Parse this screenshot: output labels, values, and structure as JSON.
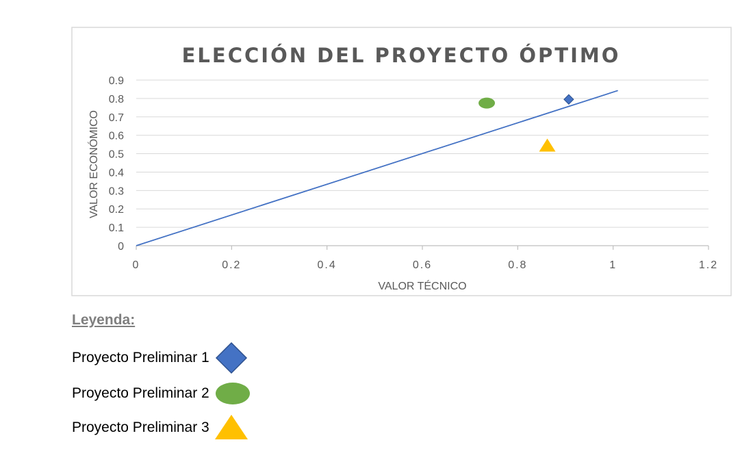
{
  "chart_data": {
    "type": "scatter",
    "title": "ELECCIÓN DEL PROYECTO ÓPTIMO",
    "xlabel": "VALOR TÉCNICO",
    "ylabel": "VALOR ECONÓMICO",
    "xlim": [
      0,
      1.2
    ],
    "ylim": [
      0,
      0.9
    ],
    "x_ticks": [
      0,
      0.2,
      0.4,
      0.6,
      0.8,
      1,
      1.2
    ],
    "x_tick_labels": [
      "0",
      "0.2",
      "0.4",
      "0.6",
      "0.8",
      "1",
      "1.2"
    ],
    "y_ticks": [
      0,
      0.1,
      0.2,
      0.3,
      0.4,
      0.5,
      0.6,
      0.7,
      0.8,
      0.9
    ],
    "y_tick_labels": [
      "0",
      "0.1",
      "0.2",
      "0.3",
      "0.4",
      "0.5",
      "0.6",
      "0.7",
      "0.8",
      "0.9"
    ],
    "grid": "horizontal",
    "series": [
      {
        "name": "Proyecto Preliminar 1",
        "x": [
          0.907
        ],
        "y": [
          0.795
        ],
        "marker": "diamond",
        "color": "#4472c4"
      },
      {
        "name": "Proyecto Preliminar 2",
        "x": [
          0.735
        ],
        "y": [
          0.775
        ],
        "marker": "ellipse",
        "color": "#70ad47"
      },
      {
        "name": "Proyecto Preliminar 3",
        "x": [
          0.862
        ],
        "y": [
          0.545
        ],
        "marker": "triangle",
        "color": "#ffc000"
      }
    ],
    "line": {
      "x": [
        0,
        1.01
      ],
      "y": [
        0,
        0.843
      ],
      "color": "#4472c4"
    }
  },
  "legend": {
    "heading": "Leyenda:",
    "items": [
      {
        "label": "Proyecto Preliminar 1",
        "marker": "diamond",
        "color": "#4472c4",
        "stroke": "#2f528f"
      },
      {
        "label": "Proyecto Preliminar 2",
        "marker": "ellipse",
        "color": "#70ad47",
        "stroke": "#70ad47"
      },
      {
        "label": "Proyecto Preliminar 3",
        "marker": "triangle",
        "color": "#ffc000",
        "stroke": "#ffc000"
      }
    ]
  }
}
